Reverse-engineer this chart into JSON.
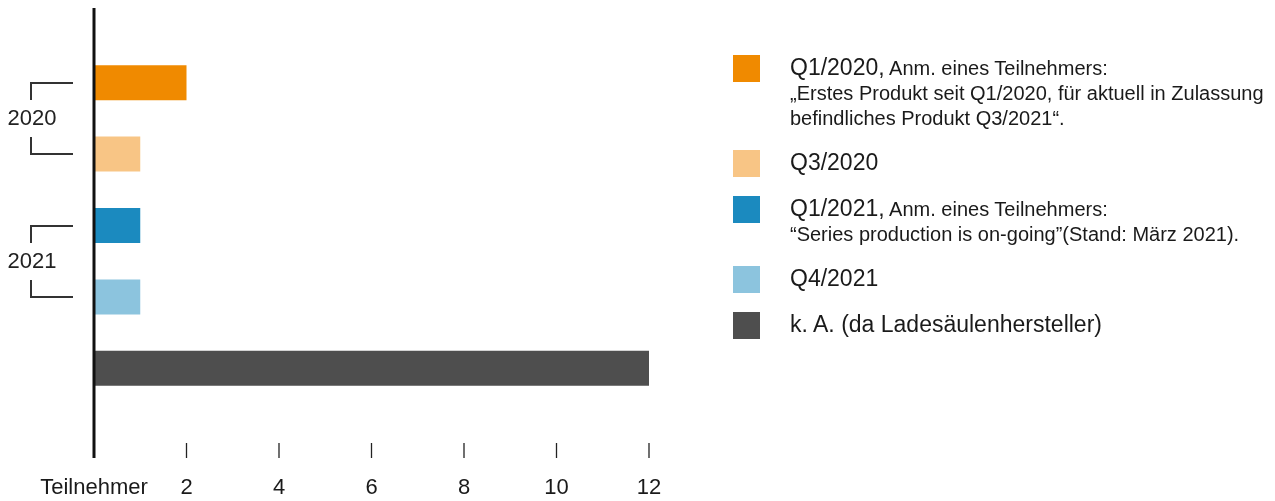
{
  "chart_data": {
    "type": "bar",
    "orientation": "horizontal",
    "categories": [
      null,
      null,
      null,
      null,
      null
    ],
    "series": [
      {
        "name": "Q1/2020, Anm. eines Teilnehmers:\n„Erstes Produkt seit Q1/2020, für aktuell in Zulassung befindliches Produkt Q3/2021“.",
        "color": "#f08a00",
        "values": [
          2,
          null,
          null,
          null,
          null
        ]
      },
      {
        "name": "Q3/2020",
        "color": "#f8c585",
        "values": [
          null,
          1,
          null,
          null,
          null
        ]
      },
      {
        "name": "Q1/2021, Anm. eines Teilnehmers:\n“Series production is on-going”(Stand: März 2021).",
        "color": "#1b8abf",
        "values": [
          null,
          null,
          1,
          null,
          null
        ]
      },
      {
        "name": "Q4/2021",
        "color": "#8cc4de",
        "values": [
          null,
          null,
          null,
          1,
          null
        ]
      },
      {
        "name": "k. A. (da Ladesäulenhersteller)",
        "color": "#4e4e4e",
        "values": [
          null,
          null,
          null,
          null,
          12
        ]
      }
    ],
    "xlabel": "Teilnehmer",
    "xlim": [
      0,
      12
    ],
    "xticks": [
      2,
      4,
      6,
      8,
      10,
      12
    ],
    "annotations": [
      "2020",
      "2021"
    ],
    "tick_labels": "x",
    "grid": false,
    "legend": "right"
  }
}
